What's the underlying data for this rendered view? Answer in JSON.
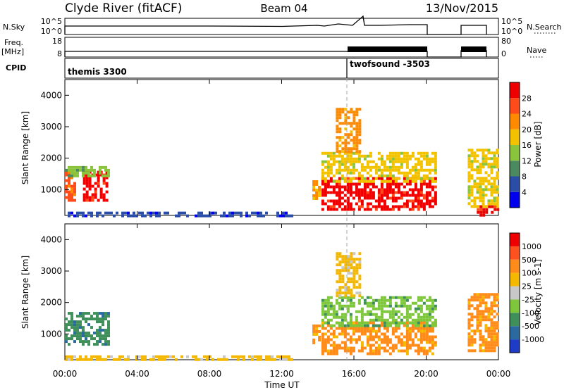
{
  "header": {
    "station": "Clyde River (fitACF)",
    "beam": "Beam 04",
    "date": "13/Nov/2015"
  },
  "panels": {
    "nsky_label": "N.Sky",
    "nsky_ticks": [
      "10^5",
      "10^0"
    ],
    "nsearch_label": "N.Search",
    "nsearch_ticks": [
      "10^5",
      "10^0"
    ],
    "freq_label_1": "Freq.",
    "freq_label_2": "[MHz]",
    "freq_ticks": [
      "18",
      "8"
    ],
    "nave_label": "Nave",
    "nave_ticks": [
      "80",
      "0"
    ],
    "cpid_label": "CPID",
    "cpid_segments": [
      {
        "label": "themis 3300",
        "start_hr": 0
      },
      {
        "label": "twofsound -3503",
        "start_hr": 16
      }
    ]
  },
  "chart_data": [
    {
      "type": "heatmap",
      "title": "",
      "xlabel": "Time UT",
      "ylabel": "Slant Range [km]",
      "xlim_hr": [
        0,
        24
      ],
      "ylim_km": [
        180,
        4500
      ],
      "x_ticks": [
        "00:00",
        "04:00",
        "08:00",
        "12:00",
        "16:00",
        "20:00",
        "00:00"
      ],
      "y_ticks": [
        1000,
        2000,
        3000,
        4000
      ],
      "colorbar": {
        "label": "Power [dB]",
        "ticks": [
          "28",
          "24",
          "20",
          "16",
          "12",
          "8",
          "4"
        ],
        "colors": [
          "#0000ee",
          "#2a4da8",
          "#4a8a5e",
          "#8ac43c",
          "#f2c200",
          "#ff8a00",
          "#ff4a1a",
          "#ee0000"
        ]
      },
      "regions": [
        {
          "t0": 0.0,
          "t1": 0.6,
          "r0": 650,
          "r1": 1600,
          "level": 6
        },
        {
          "t0": 1.0,
          "t1": 2.4,
          "r0": 650,
          "r1": 1600,
          "level": 7
        },
        {
          "t0": 0.0,
          "t1": 2.4,
          "r0": 1400,
          "r1": 1750,
          "level": 3
        },
        {
          "t0": 0.0,
          "t1": 12.5,
          "r0": 180,
          "r1": 300,
          "level": 1
        },
        {
          "t0": 13.7,
          "t1": 14.1,
          "r0": 700,
          "r1": 1300,
          "level": 5
        },
        {
          "t0": 14.2,
          "t1": 20.6,
          "r0": 400,
          "r1": 1400,
          "level": 7
        },
        {
          "t0": 14.2,
          "t1": 20.6,
          "r0": 1300,
          "r1": 2200,
          "level": 4
        },
        {
          "t0": 15.0,
          "t1": 16.3,
          "r0": 2200,
          "r1": 3600,
          "level": 5
        },
        {
          "t0": 22.3,
          "t1": 23.9,
          "r0": 500,
          "r1": 2300,
          "level": 4
        },
        {
          "t0": 22.8,
          "t1": 23.9,
          "r0": 200,
          "r1": 500,
          "level": 7
        }
      ]
    },
    {
      "type": "heatmap",
      "title": "",
      "xlabel": "Time UT",
      "ylabel": "Slant Range [km]",
      "xlim_hr": [
        0,
        24
      ],
      "ylim_km": [
        180,
        4500
      ],
      "x_ticks": [
        "00:00",
        "04:00",
        "08:00",
        "12:00",
        "16:00",
        "20:00",
        "00:00"
      ],
      "y_ticks": [
        1000,
        2000,
        3000,
        4000
      ],
      "colorbar": {
        "label": "Velocity [m s-1]",
        "ticks": [
          "1000",
          "500",
          "100",
          "25",
          "-25",
          "-100",
          "-500",
          "-1000"
        ],
        "colors": [
          "#1e3cc8",
          "#2a6a9e",
          "#3f8f5a",
          "#7ec63c",
          "#c8c8c8",
          "#f5b800",
          "#ff8c1a",
          "#ff5020",
          "#ee0000"
        ]
      },
      "regions": [
        {
          "t0": 0.0,
          "t1": 2.4,
          "r0": 650,
          "r1": 1700,
          "level": 2
        },
        {
          "t0": 0.0,
          "t1": 12.5,
          "r0": 180,
          "r1": 320,
          "level": 5
        },
        {
          "t0": 13.7,
          "t1": 14.1,
          "r0": 700,
          "r1": 1300,
          "level": 6
        },
        {
          "t0": 14.2,
          "t1": 20.6,
          "r0": 400,
          "r1": 1400,
          "level": 6
        },
        {
          "t0": 14.2,
          "t1": 20.6,
          "r0": 1300,
          "r1": 2200,
          "level": 3
        },
        {
          "t0": 15.0,
          "t1": 16.3,
          "r0": 2200,
          "r1": 3600,
          "level": 5
        },
        {
          "t0": 22.3,
          "t1": 23.9,
          "r0": 500,
          "r1": 2300,
          "level": 6
        }
      ]
    }
  ]
}
